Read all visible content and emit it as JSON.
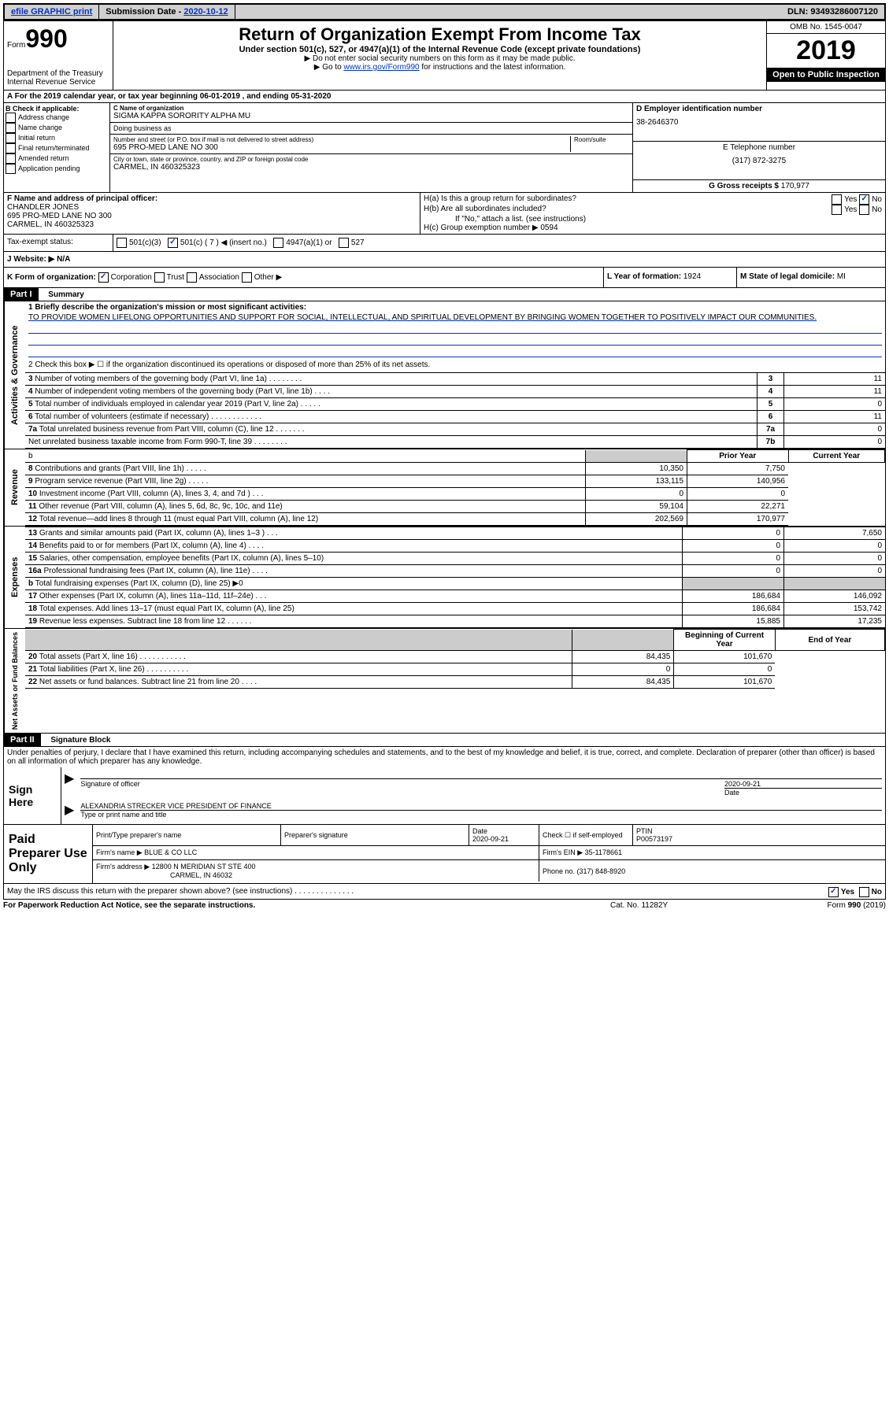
{
  "topbar": {
    "efile": "efile GRAPHIC print",
    "subdate_label": "Submission Date - ",
    "subdate": "2020-10-12",
    "dln": "DLN: 93493286007120"
  },
  "header": {
    "form_word": "Form",
    "form_num": "990",
    "dept": "Department of the Treasury\nInternal Revenue Service",
    "title": "Return of Organization Exempt From Income Tax",
    "subtitle": "Under section 501(c), 527, or 4947(a)(1) of the Internal Revenue Code (except private foundations)",
    "note1": "▶ Do not enter social security numbers on this form as it may be made public.",
    "note2_pre": "▶ Go to ",
    "note2_link": "www.irs.gov/Form990",
    "note2_post": " for instructions and the latest information.",
    "omb": "OMB No. 1545-0047",
    "year": "2019",
    "open_public": "Open to Public Inspection"
  },
  "period": "A  For the 2019 calendar year, or tax year beginning 06-01-2019     , and ending 05-31-2020",
  "boxB": {
    "label": "B Check if applicable:",
    "opts": [
      "Address change",
      "Name change",
      "Initial return",
      "Final return/terminated",
      "Amended return",
      "Application pending"
    ]
  },
  "boxC": {
    "name_label": "C Name of organization",
    "name": "SIGMA KAPPA SORORITY ALPHA MU",
    "dba_label": "Doing business as",
    "addr_label": "Number and street (or P.O. box if mail is not delivered to street address)",
    "room_label": "Room/suite",
    "addr": "695 PRO-MED LANE NO 300",
    "city_label": "City or town, state or province, country, and ZIP or foreign postal code",
    "city": "CARMEL, IN  460325323"
  },
  "boxD": {
    "label": "D Employer identification number",
    "val": "38-2646370"
  },
  "boxE": {
    "label": "E Telephone number",
    "val": "(317) 872-3275"
  },
  "boxG": {
    "label": "G Gross receipts $ ",
    "val": "170,977"
  },
  "boxF": {
    "label": "F Name and address of principal officer:",
    "name": "CHANDLER JONES",
    "addr": "695 PRO-MED LANE NO 300\nCARMEL, IN  460325323"
  },
  "boxH": {
    "a": "H(a)  Is this a group return for subordinates?",
    "b": "H(b)  Are all subordinates included?",
    "b_note": "If \"No,\" attach a list. (see instructions)",
    "c": "H(c)  Group exemption number ▶",
    "c_val": "0594"
  },
  "taxExempt": {
    "label": "Tax-exempt status:",
    "c501_3": "501(c)(3)",
    "c501": "501(c) ( 7 ) ◀ (insert no.)",
    "c4947": "4947(a)(1) or",
    "c527": "527"
  },
  "website": {
    "label": "J  Website: ▶",
    "val": "N/A"
  },
  "boxK": {
    "label": "K Form of organization:",
    "opts": [
      "Corporation",
      "Trust",
      "Association",
      "Other ▶"
    ]
  },
  "boxL": {
    "label": "L Year of formation: ",
    "val": "1924"
  },
  "boxM": {
    "label": "M State of legal domicile: ",
    "val": "MI"
  },
  "part1": {
    "header": "Part I",
    "title": "Summary",
    "q1_label": "1  Briefly describe the organization's mission or most significant activities:",
    "q1_text": "TO PROVIDE WOMEN LIFELONG OPPORTUNITIES AND SUPPORT FOR SOCIAL, INTELLECTUAL, AND SPIRITUAL DEVELOPMENT BY BRINGING WOMEN TOGETHER TO POSITIVELY IMPACT OUR COMMUNITIES.",
    "q2": "2  Check this box ▶ ☐  if the organization discontinued its operations or disposed of more than 25% of its net assets.",
    "rows_gov": [
      {
        "n": "3",
        "t": "Number of voting members of the governing body (Part VI, line 1a)   .   .   .   .   .   .   .   .",
        "box": "3",
        "v": "11"
      },
      {
        "n": "4",
        "t": "Number of independent voting members of the governing body (Part VI, line 1b)   .   .   .   .",
        "box": "4",
        "v": "11"
      },
      {
        "n": "5",
        "t": "Total number of individuals employed in calendar year 2019 (Part V, line 2a)   .   .   .   .   .",
        "box": "5",
        "v": "0"
      },
      {
        "n": "6",
        "t": "Total number of volunteers (estimate if necessary)   .   .   .   .   .   .   .   .   .   .   .   .",
        "box": "6",
        "v": "11"
      },
      {
        "n": "7a",
        "t": "Total unrelated business revenue from Part VIII, column (C), line 12   .   .   .   .   .   .   .",
        "box": "7a",
        "v": "0"
      },
      {
        "n": "",
        "t": "Net unrelated business taxable income from Form 990-T, line 39   .   .   .   .   .   .   .   .",
        "box": "7b",
        "v": "0"
      }
    ],
    "col_prior": "Prior Year",
    "col_current": "Current Year",
    "rows_rev": [
      {
        "n": "8",
        "t": "Contributions and grants (Part VIII, line 1h)   .   .   .   .   .",
        "p": "10,350",
        "c": "7,750"
      },
      {
        "n": "9",
        "t": "Program service revenue (Part VIII, line 2g)   .   .   .   .   .",
        "p": "133,115",
        "c": "140,956"
      },
      {
        "n": "10",
        "t": "Investment income (Part VIII, column (A), lines 3, 4, and 7d )   .   .   .",
        "p": "0",
        "c": "0"
      },
      {
        "n": "11",
        "t": "Other revenue (Part VIII, column (A), lines 5, 6d, 8c, 9c, 10c, and 11e)",
        "p": "59,104",
        "c": "22,271"
      },
      {
        "n": "12",
        "t": "Total revenue—add lines 8 through 11 (must equal Part VIII, column (A), line 12)",
        "p": "202,569",
        "c": "170,977"
      }
    ],
    "rows_exp": [
      {
        "n": "13",
        "t": "Grants and similar amounts paid (Part IX, column (A), lines 1–3 )   .   .   .",
        "p": "0",
        "c": "7,650"
      },
      {
        "n": "14",
        "t": "Benefits paid to or for members (Part IX, column (A), line 4)   .   .   .   .",
        "p": "0",
        "c": "0"
      },
      {
        "n": "15",
        "t": "Salaries, other compensation, employee benefits (Part IX, column (A), lines 5–10)",
        "p": "0",
        "c": "0"
      },
      {
        "n": "16a",
        "t": "Professional fundraising fees (Part IX, column (A), line 11e)   .   .   .   .",
        "p": "0",
        "c": "0"
      },
      {
        "n": "b",
        "t": "Total fundraising expenses (Part IX, column (D), line 25) ▶0",
        "p": "",
        "c": "",
        "shade": true
      },
      {
        "n": "17",
        "t": "Other expenses (Part IX, column (A), lines 11a–11d, 11f–24e)   .   .   .",
        "p": "186,684",
        "c": "146,092"
      },
      {
        "n": "18",
        "t": "Total expenses. Add lines 13–17 (must equal Part IX, column (A), line 25)",
        "p": "186,684",
        "c": "153,742"
      },
      {
        "n": "19",
        "t": "Revenue less expenses. Subtract line 18 from line 12   .   .   .   .   .   .",
        "p": "15,885",
        "c": "17,235"
      }
    ],
    "col_boy": "Beginning of Current Year",
    "col_eoy": "End of Year",
    "rows_net": [
      {
        "n": "20",
        "t": "Total assets (Part X, line 16)   .   .   .   .   .   .   .   .   .   .   .",
        "p": "84,435",
        "c": "101,670"
      },
      {
        "n": "21",
        "t": "Total liabilities (Part X, line 26)   .   .   .   .   .   .   .   .   .   .",
        "p": "0",
        "c": "0"
      },
      {
        "n": "22",
        "t": "Net assets or fund balances. Subtract line 21 from line 20   .   .   .   .",
        "p": "84,435",
        "c": "101,670"
      }
    ],
    "side_gov": "Activities & Governance",
    "side_rev": "Revenue",
    "side_exp": "Expenses",
    "side_net": "Net Assets or Fund Balances"
  },
  "part2": {
    "header": "Part II",
    "title": "Signature Block",
    "perjury": "Under penalties of perjury, I declare that I have examined this return, including accompanying schedules and statements, and to the best of my knowledge and belief, it is true, correct, and complete. Declaration of preparer (other than officer) is based on all information of which preparer has any knowledge."
  },
  "sign": {
    "label": "Sign Here",
    "sig_officer": "Signature of officer",
    "date_label": "Date",
    "date": "2020-09-21",
    "name": "ALEXANDRIA STRECKER  VICE PRESIDENT OF FINANCE",
    "name_label": "Type or print name and title"
  },
  "preparer": {
    "label": "Paid Preparer Use Only",
    "h_print": "Print/Type preparer's name",
    "h_sig": "Preparer's signature",
    "h_date": "Date",
    "date": "2020-09-21",
    "h_check": "Check ☐ if self-employed",
    "h_ptin": "PTIN",
    "ptin": "P00573197",
    "firm_name_label": "Firm's name    ▶",
    "firm_name": "BLUE & CO LLC",
    "firm_ein_label": "Firm's EIN ▶",
    "firm_ein": "35-1178661",
    "firm_addr_label": "Firm's address ▶",
    "firm_addr": "12800 N MERIDIAN ST STE 400",
    "firm_city": "CARMEL, IN  46032",
    "phone_label": "Phone no. ",
    "phone": "(317) 848-8920"
  },
  "may_irs": "May the IRS discuss this return with the preparer shown above? (see instructions)   .   .   .   .   .   .   .   .   .   .   .   .   .   .",
  "footer": {
    "paperwork": "For Paperwork Reduction Act Notice, see the separate instructions.",
    "cat": "Cat. No. 11282Y",
    "form": "Form 990 (2019)"
  }
}
